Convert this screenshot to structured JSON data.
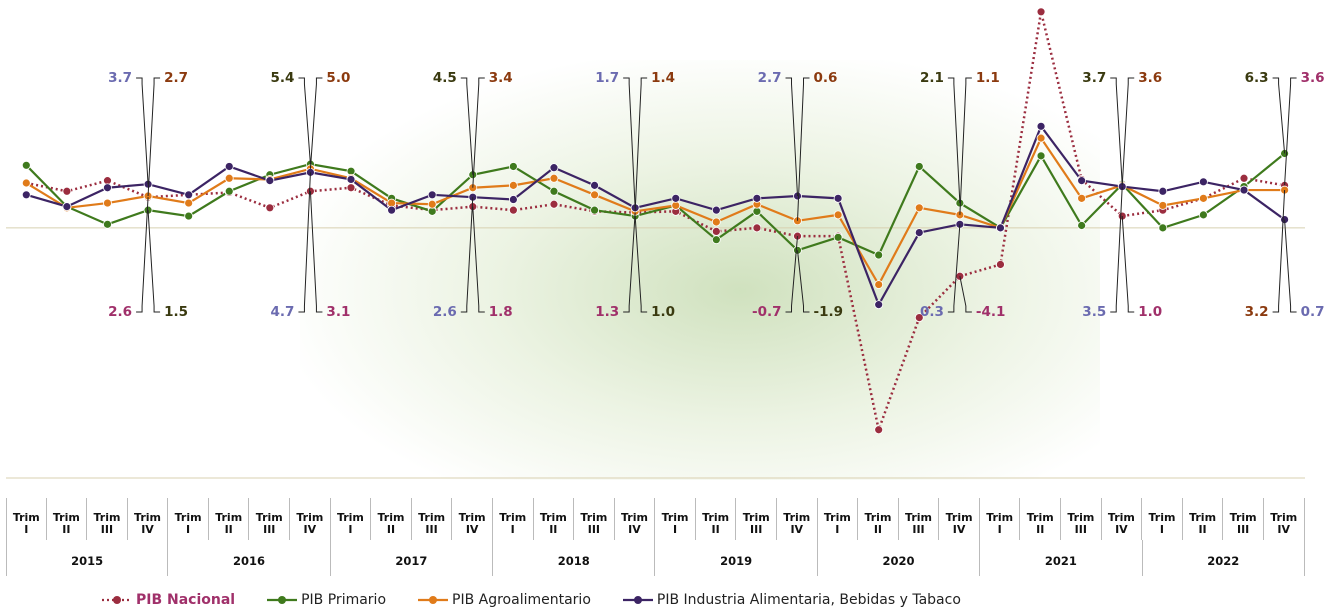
{
  "chart_data": {
    "type": "line",
    "categories": [
      "Trim I",
      "Trim II",
      "Trim III",
      "Trim IV",
      "Trim I",
      "Trim II",
      "Trim III",
      "Trim IV",
      "Trim I",
      "Trim II",
      "Trim III",
      "Trim IV",
      "Trim I",
      "Trim II",
      "Trim III",
      "Trim IV",
      "Trim I",
      "Trim II",
      "Trim III",
      "Trim IV",
      "Trim I",
      "Trim II",
      "Trim III",
      "Trim IV",
      "Trim I",
      "Trim II",
      "Trim III",
      "Trim IV",
      "Trim I",
      "Trim II",
      "Trim III",
      "Trim IV"
    ],
    "years": [
      "2015",
      "2016",
      "2017",
      "2018",
      "2019",
      "2020",
      "2021",
      "2022"
    ],
    "ylim": [
      -20,
      19.3
    ],
    "series": [
      {
        "name": "PIB Nacional",
        "color": "#9b2d3f",
        "label_color": "#a0306a",
        "dashed": true,
        "values": [
          3.8,
          3.1,
          4.0,
          2.6,
          2.8,
          3.0,
          1.7,
          3.1,
          3.4,
          1.9,
          1.5,
          1.8,
          1.5,
          2.0,
          1.4,
          1.3,
          1.4,
          -0.3,
          0.0,
          -0.7,
          -0.7,
          -17.1,
          -7.6,
          -4.1,
          -3.1,
          18.3,
          4.1,
          1.0,
          1.5,
          2.5,
          4.2,
          3.6
        ],
        "value_labels": [
          null,
          null,
          null,
          "2.6",
          null,
          null,
          null,
          "3.1",
          null,
          null,
          null,
          "1.8",
          null,
          null,
          null,
          "1.3",
          null,
          null,
          null,
          "-0.7",
          null,
          null,
          null,
          "-4.1",
          null,
          null,
          null,
          "1.0",
          null,
          null,
          null,
          "3.6"
        ]
      },
      {
        "name": "PIB Primario",
        "color": "#3f7a1d",
        "label_color": "#3a3a10",
        "dashed": false,
        "values": [
          5.3,
          1.8,
          0.3,
          1.5,
          1.0,
          3.1,
          4.5,
          5.4,
          4.8,
          2.5,
          1.4,
          4.5,
          5.2,
          3.1,
          1.5,
          1.0,
          1.9,
          -1.0,
          1.4,
          -1.9,
          -0.8,
          -2.3,
          5.2,
          2.1,
          0.0,
          6.1,
          0.2,
          3.7,
          0.0,
          1.1,
          3.5,
          6.3
        ],
        "value_labels": [
          null,
          null,
          null,
          "1.5",
          null,
          null,
          null,
          "5.4",
          null,
          null,
          null,
          "4.5",
          null,
          null,
          null,
          "1.0",
          null,
          null,
          null,
          "-1.9",
          null,
          null,
          null,
          "2.1",
          null,
          null,
          null,
          "3.7",
          null,
          null,
          null,
          "6.3"
        ]
      },
      {
        "name": "PIB Agroalimentario",
        "color": "#e07b1a",
        "label_color": "#8b3a0f",
        "dashed": false,
        "values": [
          3.8,
          1.7,
          2.1,
          2.7,
          2.1,
          4.2,
          4.1,
          5.0,
          4.2,
          2.1,
          2.0,
          3.4,
          3.6,
          4.2,
          2.8,
          1.4,
          1.9,
          0.5,
          2.0,
          0.6,
          1.1,
          -4.8,
          1.7,
          1.1,
          0.0,
          7.6,
          2.5,
          3.6,
          1.9,
          2.5,
          3.2,
          3.2
        ],
        "value_labels": [
          null,
          null,
          null,
          "2.7",
          null,
          null,
          null,
          "5.0",
          null,
          null,
          null,
          "3.4",
          null,
          null,
          null,
          "1.4",
          null,
          null,
          null,
          "0.6",
          null,
          null,
          null,
          "1.1",
          null,
          null,
          null,
          "3.6",
          null,
          null,
          null,
          "3.2"
        ]
      },
      {
        "name": "PIB Industria Alimentaria, Bebidas y Tabaco",
        "color": "#3c2464",
        "label_color": "#6b6bb0",
        "dashed": false,
        "values": [
          2.8,
          1.8,
          3.4,
          3.7,
          2.8,
          5.2,
          4.0,
          4.7,
          4.1,
          1.5,
          2.8,
          2.6,
          2.4,
          5.1,
          3.6,
          1.7,
          2.5,
          1.5,
          2.5,
          2.7,
          2.5,
          -6.5,
          -0.4,
          0.3,
          0.0,
          8.6,
          4.0,
          3.5,
          3.1,
          3.9,
          3.2,
          0.7
        ],
        "value_labels": [
          null,
          null,
          null,
          "3.7",
          null,
          null,
          null,
          "4.7",
          null,
          null,
          null,
          "2.6",
          null,
          null,
          null,
          "1.7",
          null,
          null,
          null,
          "2.7",
          null,
          null,
          null,
          "0.3",
          null,
          null,
          null,
          "3.5",
          null,
          null,
          null,
          "0.7"
        ]
      }
    ]
  }
}
